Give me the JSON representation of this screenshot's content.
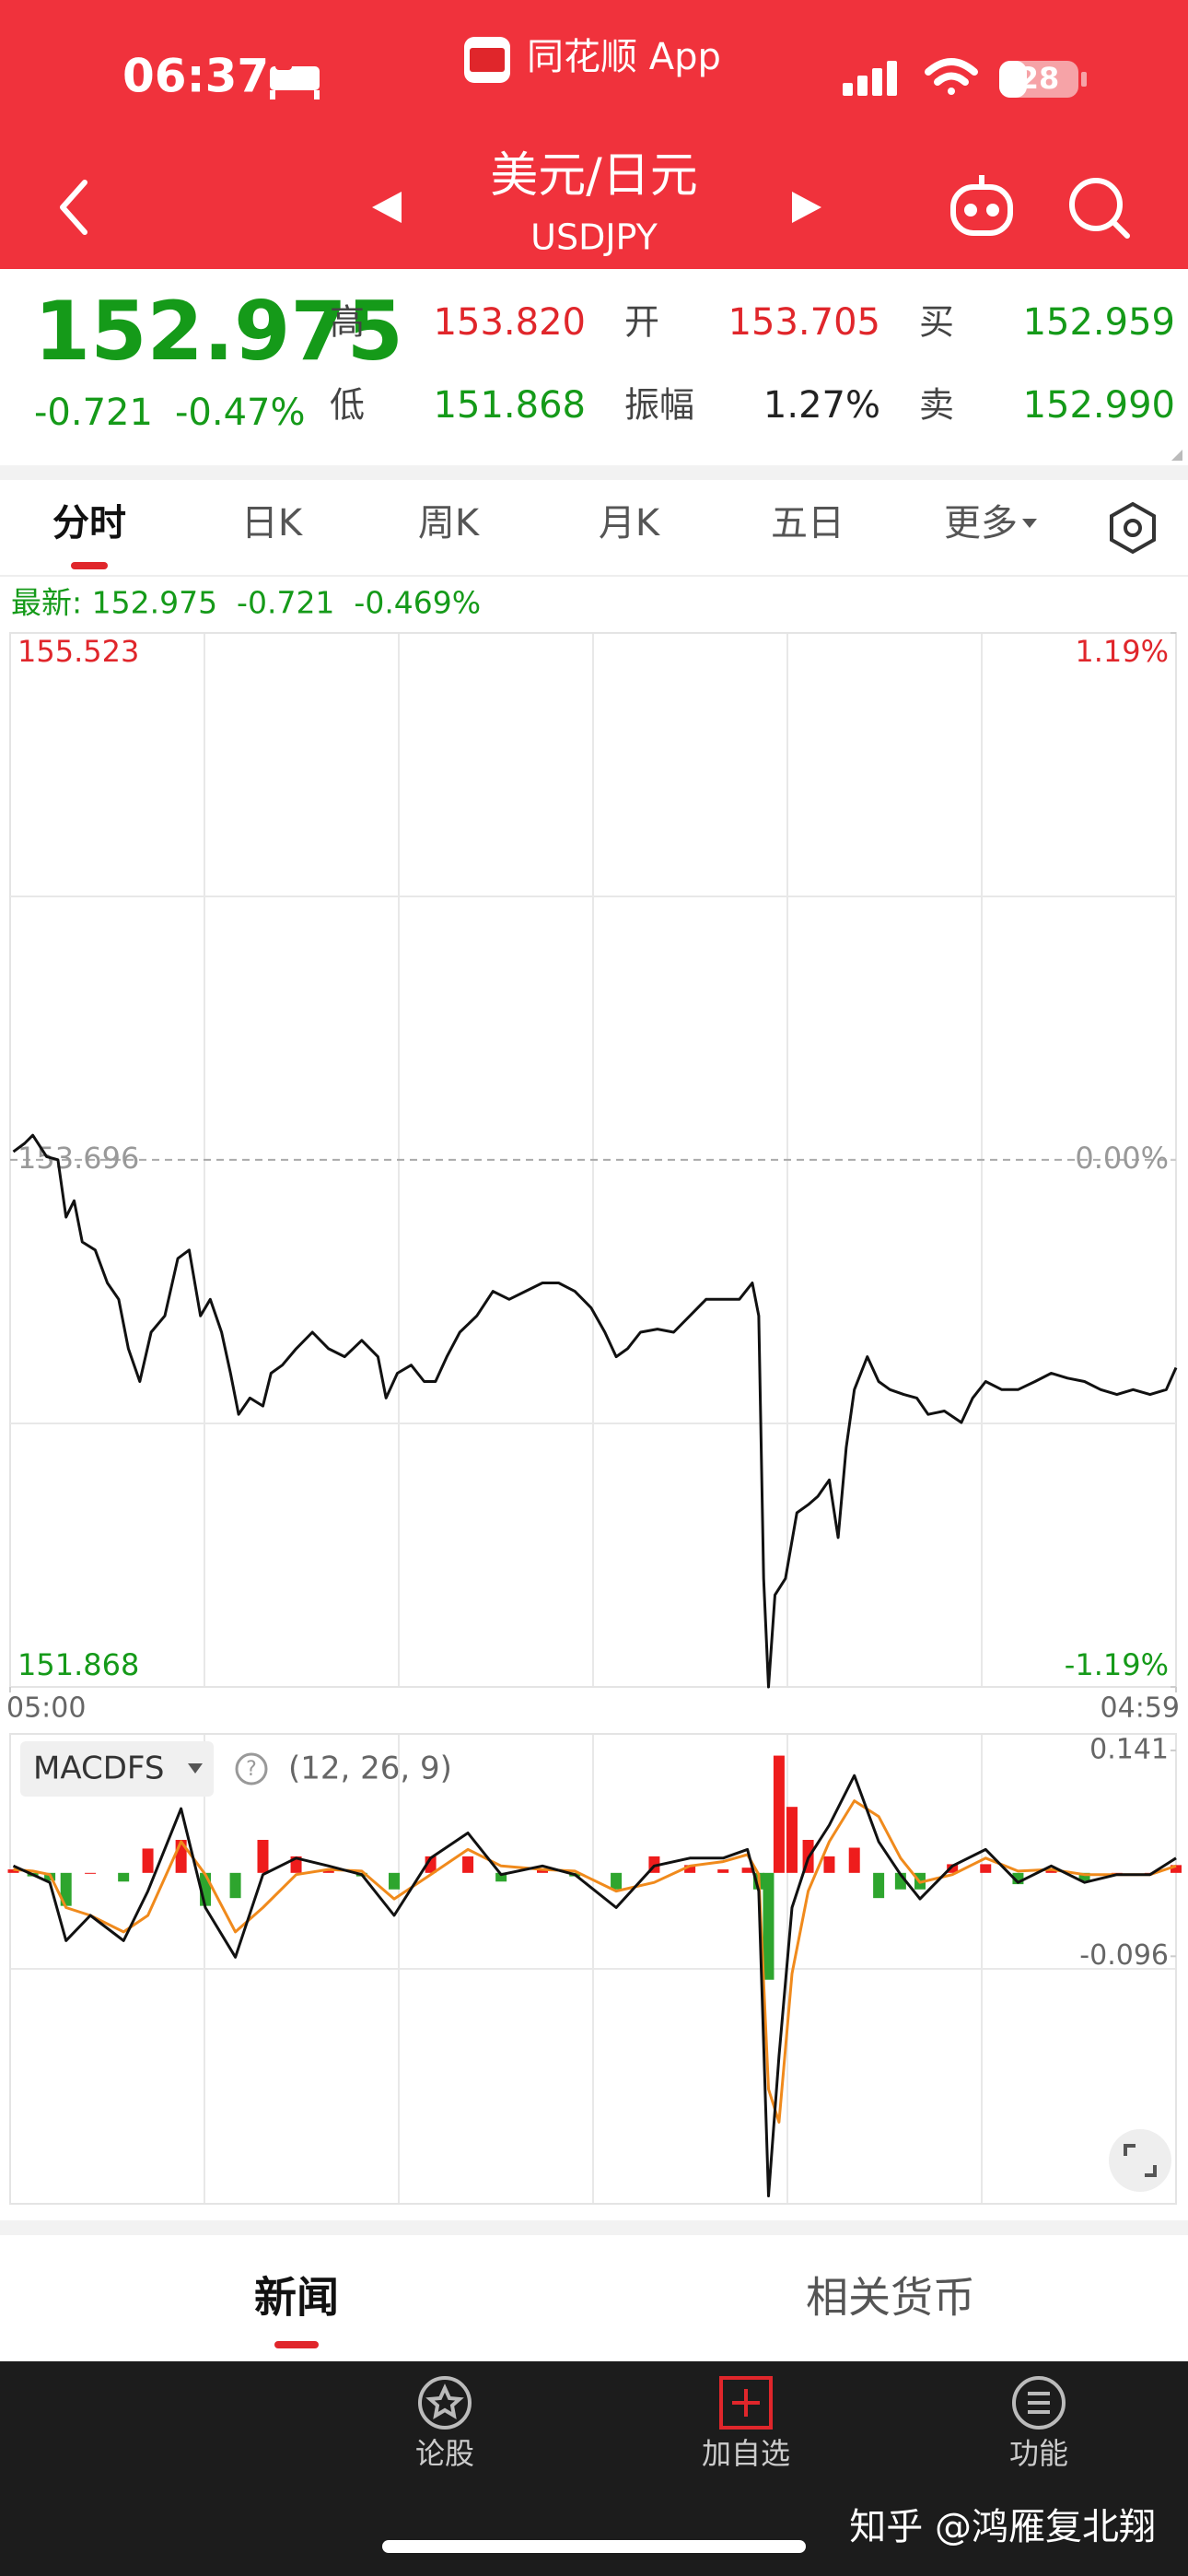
{
  "status_bar": {
    "time": "06:37",
    "app": "同花顺 App",
    "battery": "28"
  },
  "header": {
    "title": "美元/日元",
    "subtitle": "USDJPY"
  },
  "quote": {
    "price": "152.975",
    "change": "-0.721",
    "change_pct": "-0.47%",
    "color": "#159a19",
    "fields": [
      {
        "label": "高",
        "value": "153.820",
        "color": "#e0262b"
      },
      {
        "label": "开",
        "value": "153.705",
        "color": "#e0262b"
      },
      {
        "label": "买",
        "value": "152.959",
        "color": "#159a19"
      },
      {
        "label": "低",
        "value": "151.868",
        "color": "#159a19"
      },
      {
        "label": "振幅",
        "value": "1.27%",
        "color": "#222222"
      },
      {
        "label": "卖",
        "value": "152.990",
        "color": "#159a19"
      }
    ]
  },
  "tabs": {
    "items": [
      "分时",
      "日K",
      "周K",
      "月K",
      "五日",
      "更多"
    ],
    "active": 0
  },
  "latest": "最新: 152.975  -0.721  -0.469%",
  "chart_data": [
    {
      "type": "line",
      "x": [
        4,
        18,
        28,
        45,
        59,
        69,
        79,
        89,
        105,
        120,
        134,
        146,
        160,
        174,
        191,
        207,
        221,
        235,
        247,
        261,
        272,
        282,
        296,
        312,
        322,
        336,
        353,
        373,
        393,
        413,
        434,
        454,
        464,
        478,
        495,
        511,
        525,
        539,
        555,
        576,
        596,
        616,
        636,
        657,
        677,
        697,
        717,
        734,
        748,
        762,
        778,
        799,
        819,
        839,
        859,
        880,
        900,
        916,
        924,
        930,
        936,
        944,
        957,
        971,
        985,
        997,
        1011,
        1022,
        1032,
        1042,
        1058,
        1072,
        1086,
        1103,
        1119,
        1133,
        1153,
        1174,
        1188,
        1204,
        1224,
        1244,
        1265,
        1285,
        1305,
        1326,
        1346,
        1366,
        1386,
        1407,
        1427,
        1439
      ],
      "series": [
        {
          "color": "#111111",
          "values": [
            153.724,
            153.753,
            153.781,
            153.707,
            153.696,
            153.497,
            153.554,
            153.411,
            153.383,
            153.269,
            153.212,
            153.041,
            152.927,
            153.098,
            153.155,
            153.354,
            153.383,
            153.155,
            153.212,
            153.098,
            152.956,
            152.813,
            152.87,
            152.842,
            152.956,
            152.984,
            153.041,
            153.098,
            153.041,
            153.013,
            153.07,
            153.013,
            152.87,
            152.956,
            152.984,
            152.927,
            152.927,
            153.013,
            153.098,
            153.155,
            153.24,
            153.212,
            153.24,
            153.269,
            153.269,
            153.24,
            153.183,
            153.098,
            153.013,
            153.041,
            153.098,
            153.109,
            153.098,
            153.155,
            153.212,
            153.212,
            153.212,
            153.269,
            153.155,
            152.244,
            151.868,
            152.187,
            152.244,
            152.472,
            152.5,
            152.529,
            152.586,
            152.386,
            152.699,
            152.899,
            153.013,
            152.927,
            152.899,
            152.882,
            152.87,
            152.813,
            152.825,
            152.785,
            152.87,
            152.927,
            152.899,
            152.899,
            152.927,
            152.956,
            152.939,
            152.927,
            152.899,
            152.882,
            152.899,
            152.882,
            152.899,
            152.975
          ]
        }
      ],
      "xlim": [
        0,
        1439
      ],
      "xticks": [
        {
          "value": 0,
          "label": "05:00"
        },
        {
          "value": 1439,
          "label": "04:59"
        }
      ],
      "ylim": [
        151.868,
        155.523
      ],
      "yticks": [
        155.523,
        153.696,
        151.868
      ],
      "y2lim": [
        -1.19,
        1.19
      ],
      "y2ticks": [
        {
          "value": 1.19,
          "label": "1.19%"
        },
        {
          "value": 0,
          "label": "0.00%"
        },
        {
          "value": -1.19,
          "label": "-1.19%"
        }
      ],
      "up_color": "#e0262b",
      "down_color": "#159a19",
      "flat_color": "#999999"
    },
    {
      "type": "macd",
      "title": "MACDFS",
      "subtitle": "(12, 26, 9)",
      "x": [
        4,
        28,
        49,
        69,
        99,
        140,
        170,
        211,
        241,
        278,
        312,
        353,
        393,
        434,
        474,
        519,
        565,
        606,
        657,
        697,
        748,
        795,
        839,
        880,
        910,
        924,
        936,
        949,
        965,
        985,
        1011,
        1042,
        1072,
        1099,
        1123,
        1163,
        1204,
        1244,
        1285,
        1326,
        1366,
        1407,
        1439
      ],
      "xlim": [
        0,
        1439
      ],
      "ylim": [
        -0.381,
        0.16
      ],
      "yticks": [
        0.141,
        -0.096
      ],
      "series": [
        {
          "type": "bar",
          "color": "#ee1c1c",
          "down_color": "#2ea52e",
          "values": [
            0.004,
            -0.004,
            -0.009,
            -0.038,
            0,
            -0.01,
            0.028,
            0.038,
            -0.038,
            -0.029,
            0.038,
            0.019,
            0.004,
            -0.004,
            -0.019,
            0.019,
            0.019,
            -0.01,
            0.004,
            -0.004,
            -0.019,
            0.019,
            0.009,
            0.004,
            0.006,
            -0.019,
            -0.123,
            0.135,
            0.076,
            0.038,
            0.019,
            0.029,
            -0.029,
            -0.019,
            -0.019,
            0.01,
            0.01,
            -0.013,
            0.004,
            -0.009,
            0,
            0,
            0.009
          ]
        },
        {
          "type": "line",
          "color": "#f08a1c",
          "values": [
            0.004,
            0.002,
            -0.002,
            -0.04,
            -0.049,
            -0.068,
            -0.049,
            0.036,
            -0.002,
            -0.068,
            -0.04,
            -0.002,
            0.004,
            0.002,
            -0.03,
            -0.002,
            0.027,
            0.008,
            0.004,
            0.002,
            -0.021,
            -0.011,
            0.008,
            0.013,
            0.021,
            -0.002,
            -0.249,
            -0.287,
            -0.116,
            -0.021,
            0.036,
            0.083,
            0.065,
            0.017,
            -0.011,
            -0.002,
            0.017,
            0.002,
            0.004,
            -0.002,
            -0.002,
            -0.002,
            0.008
          ]
        },
        {
          "type": "line",
          "color": "#111111",
          "values": [
            0.008,
            -0.002,
            -0.011,
            -0.078,
            -0.049,
            -0.078,
            -0.021,
            0.074,
            -0.04,
            -0.097,
            -0.002,
            0.017,
            0.008,
            -0.002,
            -0.049,
            0.017,
            0.046,
            -0.002,
            0.008,
            -0.002,
            -0.04,
            0.008,
            0.017,
            0.017,
            0.027,
            -0.021,
            -0.372,
            -0.211,
            -0.04,
            0.017,
            0.055,
            0.112,
            0.036,
            -0.002,
            -0.03,
            0.008,
            0.027,
            -0.011,
            0.008,
            -0.011,
            -0.002,
            -0.002,
            0.017
          ]
        }
      ]
    }
  ],
  "bottom_tabs": {
    "items": [
      "新闻",
      "相关货币"
    ],
    "active": 0
  },
  "nav": {
    "items": [
      "论股",
      "加自选",
      "功能"
    ]
  },
  "watermark": "知乎 @鸿雁复北翔"
}
